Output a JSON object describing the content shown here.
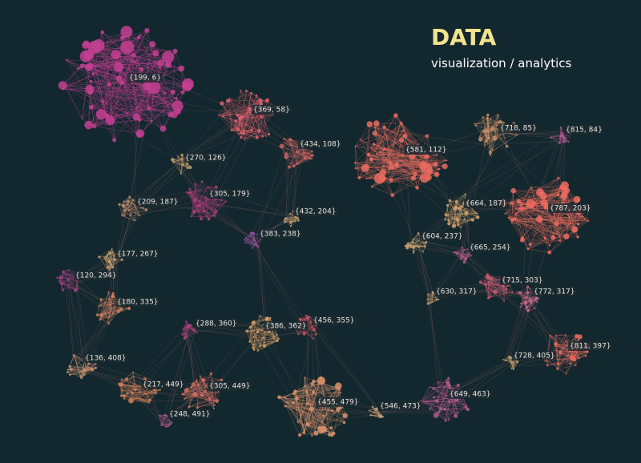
{
  "header": {
    "title": "DATA",
    "subtitle": "visualization / analytics"
  },
  "clusters": [
    {
      "label": "{199, 6}"
    },
    {
      "label": "{369, 58}"
    },
    {
      "label": "{434, 108}"
    },
    {
      "label": "{581, 112}"
    },
    {
      "label": "{718, 85}"
    },
    {
      "label": "{815, 84}"
    },
    {
      "label": "{270, 126}"
    },
    {
      "label": "{305, 179}"
    },
    {
      "label": "{209, 187}"
    },
    {
      "label": "{432, 204}"
    },
    {
      "label": "{664, 187}"
    },
    {
      "label": "{787, 203}"
    },
    {
      "label": "{383, 238}"
    },
    {
      "label": "{604, 237}"
    },
    {
      "label": "{665, 254}"
    },
    {
      "label": "{177, 267}"
    },
    {
      "label": "{120, 294}"
    },
    {
      "label": "{715, 303}"
    },
    {
      "label": "{772, 317}"
    },
    {
      "label": "{630, 317}"
    },
    {
      "label": "{180, 335}"
    },
    {
      "label": "{288, 360}"
    },
    {
      "label": "{386, 362}"
    },
    {
      "label": "{456, 355}"
    },
    {
      "label": "{811, 397}"
    },
    {
      "label": "{136, 408}"
    },
    {
      "label": "{728, 405}"
    },
    {
      "label": "{217, 449}"
    },
    {
      "label": "{305, 449}"
    },
    {
      "label": "{455, 479}"
    },
    {
      "label": "{546, 473}"
    },
    {
      "label": "{649, 463}"
    },
    {
      "label": "{248, 491}"
    }
  ]
}
